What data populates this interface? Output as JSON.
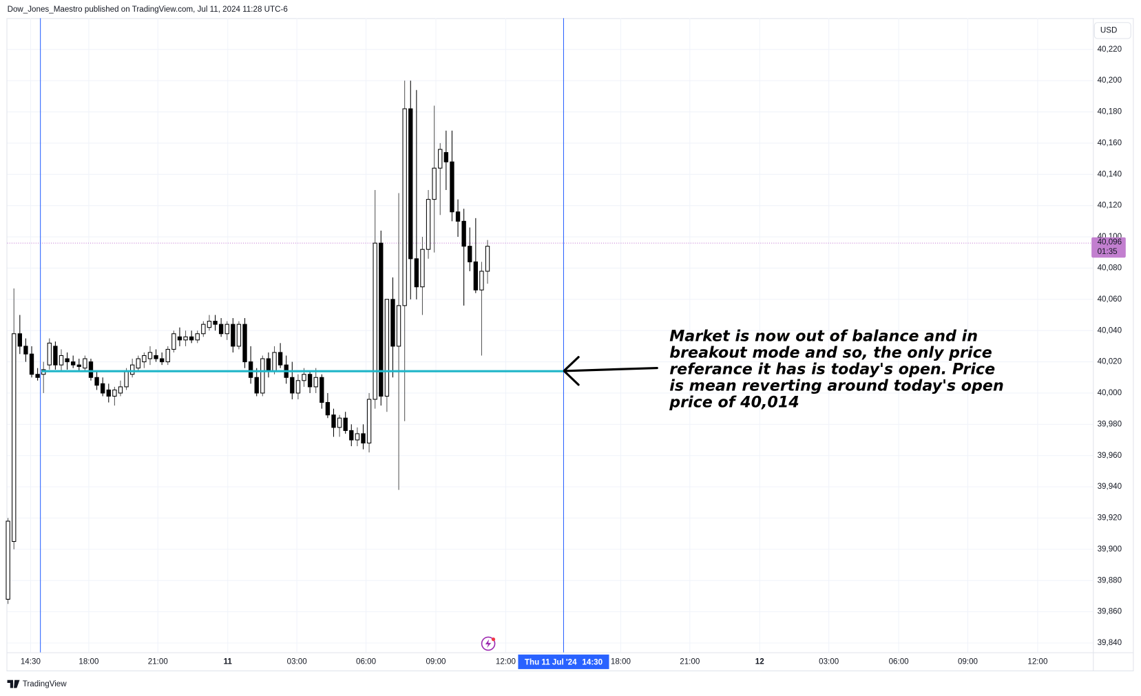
{
  "header": "Dow_Jones_Maestro published on TradingView.com, Jul 11, 2024 11:28 UTC-6",
  "footer": "TradingView",
  "chart_data": {
    "type": "candlestick",
    "currency": "USD",
    "ylim": [
      39834,
      40240
    ],
    "yticks": [
      {
        "value": 39840,
        "label": "39,840"
      },
      {
        "value": 39860,
        "label": "39,860"
      },
      {
        "value": 39880,
        "label": "39,880"
      },
      {
        "value": 39900,
        "label": "39,900"
      },
      {
        "value": 39920,
        "label": "39,920"
      },
      {
        "value": 39940,
        "label": "39,940"
      },
      {
        "value": 39960,
        "label": "39,960"
      },
      {
        "value": 39980,
        "label": "39,980"
      },
      {
        "value": 40000,
        "label": "40,000"
      },
      {
        "value": 40020,
        "label": "40,020"
      },
      {
        "value": 40040,
        "label": "40,040"
      },
      {
        "value": 40060,
        "label": "40,060"
      },
      {
        "value": 40080,
        "label": "40,080"
      },
      {
        "value": 40100,
        "label": "40,100"
      },
      {
        "value": 40120,
        "label": "40,120"
      },
      {
        "value": 40140,
        "label": "40,140"
      },
      {
        "value": 40160,
        "label": "40,160"
      },
      {
        "value": 40180,
        "label": "40,180"
      },
      {
        "value": 40200,
        "label": "40,200"
      },
      {
        "value": 40220,
        "label": "40,220"
      }
    ],
    "xticks": [
      "14:30",
      "18:00",
      "21:00",
      "11",
      "03:00",
      "06:00",
      "09:00",
      "12:00",
      "18:00",
      "21:00",
      "12",
      "03:00",
      "06:00",
      "09:00",
      "12:00"
    ],
    "grid": true,
    "up_color": "#ffffff",
    "down_color": "#000000",
    "candles": [
      [
        39868,
        39920,
        39865,
        39918
      ],
      [
        39905,
        40067,
        39900,
        40038
      ],
      [
        40038,
        40050,
        40025,
        40030
      ],
      [
        40030,
        40035,
        40020,
        40025
      ],
      [
        40025,
        40030,
        40010,
        40012
      ],
      [
        40012,
        40016,
        40008,
        40010
      ],
      [
        40012,
        40020,
        40000,
        40015
      ],
      [
        40018,
        40035,
        40015,
        40032
      ],
      [
        40030,
        40033,
        40015,
        40018
      ],
      [
        40018,
        40028,
        40014,
        40024
      ],
      [
        40022,
        40026,
        40015,
        40020
      ],
      [
        40020,
        40024,
        40016,
        40018
      ],
      [
        40018,
        40022,
        40014,
        40017
      ],
      [
        40016,
        40024,
        40014,
        40022
      ],
      [
        40020,
        40022,
        40008,
        40010
      ],
      [
        40010,
        40014,
        40002,
        40005
      ],
      [
        40006,
        40010,
        39998,
        40000
      ],
      [
        40002,
        40006,
        39994,
        39998
      ],
      [
        39998,
        40004,
        39992,
        40002
      ],
      [
        40000,
        40008,
        39998,
        40004
      ],
      [
        40004,
        40016,
        40002,
        40014
      ],
      [
        40012,
        40022,
        40010,
        40018
      ],
      [
        40016,
        40024,
        40014,
        40022
      ],
      [
        40020,
        40026,
        40016,
        40024
      ],
      [
        40022,
        40030,
        40018,
        40026
      ],
      [
        40024,
        40028,
        40020,
        40022
      ],
      [
        40022,
        40026,
        40018,
        40020
      ],
      [
        40020,
        40030,
        40018,
        40028
      ],
      [
        40028,
        40040,
        40026,
        40038
      ],
      [
        40036,
        40042,
        40030,
        40034
      ],
      [
        40034,
        40040,
        40030,
        40036
      ],
      [
        40036,
        40040,
        40032,
        40034
      ],
      [
        40034,
        40040,
        40032,
        40038
      ],
      [
        40038,
        40046,
        40036,
        40044
      ],
      [
        40042,
        40050,
        40040,
        40046
      ],
      [
        40046,
        40050,
        40040,
        40044
      ],
      [
        40044,
        40048,
        40036,
        40038
      ],
      [
        40038,
        40046,
        40034,
        40044
      ],
      [
        40044,
        40048,
        40026,
        40030
      ],
      [
        40030,
        40046,
        40028,
        40044
      ],
      [
        40044,
        40048,
        40016,
        40020
      ],
      [
        40020,
        40030,
        40006,
        40010
      ],
      [
        40010,
        40016,
        39998,
        40000
      ],
      [
        40000,
        40024,
        39998,
        40022
      ],
      [
        40022,
        40026,
        40010,
        40014
      ],
      [
        40014,
        40030,
        40012,
        40026
      ],
      [
        40026,
        40032,
        40016,
        40018
      ],
      [
        40018,
        40024,
        40006,
        40010
      ],
      [
        40010,
        40020,
        39996,
        40000
      ],
      [
        40000,
        40012,
        39996,
        40008
      ],
      [
        40008,
        40016,
        40004,
        40012
      ],
      [
        40012,
        40014,
        40000,
        40004
      ],
      [
        40004,
        40016,
        40000,
        40010
      ],
      [
        40010,
        40012,
        39990,
        39994
      ],
      [
        39994,
        40000,
        39984,
        39986
      ],
      [
        39986,
        39990,
        39972,
        39978
      ],
      [
        39978,
        39986,
        39972,
        39984
      ],
      [
        39984,
        39988,
        39974,
        39976
      ],
      [
        39976,
        39980,
        39966,
        39970
      ],
      [
        39970,
        39978,
        39966,
        39974
      ],
      [
        39974,
        39980,
        39964,
        39968
      ],
      [
        39968,
        40000,
        39962,
        39996
      ],
      [
        39996,
        40130,
        39990,
        40096
      ],
      [
        40096,
        40104,
        39992,
        39998
      ],
      [
        39998,
        40060,
        39988,
        40060
      ],
      [
        40060,
        40074,
        40010,
        40030
      ],
      [
        40030,
        40128,
        39938,
        40056
      ],
      [
        40056,
        40200,
        39982,
        40182
      ],
      [
        40182,
        40200,
        40060,
        40086
      ],
      [
        40086,
        40194,
        40060,
        40068
      ],
      [
        40068,
        40100,
        40050,
        40092
      ],
      [
        40092,
        40130,
        40086,
        40124
      ],
      [
        40124,
        40184,
        40090,
        40144
      ],
      [
        40144,
        40160,
        40114,
        40156
      ],
      [
        40154,
        40168,
        40130,
        40148
      ],
      [
        40148,
        40168,
        40110,
        40116
      ],
      [
        40116,
        40124,
        40100,
        40110
      ],
      [
        40110,
        40118,
        40056,
        40094
      ],
      [
        40094,
        40106,
        40078,
        40084
      ],
      [
        40084,
        40112,
        40064,
        40066
      ],
      [
        40066,
        40084,
        40024,
        40078
      ],
      [
        40078,
        40098,
        40070,
        40094
      ]
    ],
    "hline": 40014,
    "hline_color": "#1fb5c8",
    "last_price": {
      "value": 40096,
      "label": "40,096"
    },
    "countdown": "01:35",
    "crosshair": {
      "date": "Thu 11 Jul '24",
      "time": "14:30"
    },
    "annotation": [
      "Market is now out of balance and in",
      "breakout mode and so, the only price",
      "referance it has is today's open. Price",
      "is mean reverting around today's open",
      "price of 40,014"
    ]
  }
}
